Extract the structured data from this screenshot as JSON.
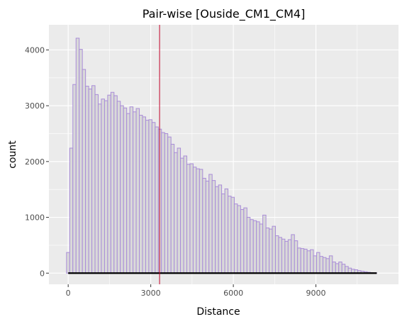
{
  "chart_data": {
    "type": "bar",
    "title": "Pair-wise [Ouside_CM1_CM4]",
    "xlabel": "Distance",
    "ylabel": "count",
    "x_ticks": [
      "0",
      "3000",
      "6000",
      "9000"
    ],
    "y_ticks": [
      "0",
      "1000",
      "2000",
      "3000",
      "4000"
    ],
    "xlim": [
      -700,
      12000
    ],
    "ylim": [
      -200,
      4450
    ],
    "bin_start": -60,
    "bin_width": 115,
    "values": [
      370,
      2240,
      3380,
      4210,
      4010,
      3650,
      3350,
      3300,
      3360,
      3200,
      3030,
      3120,
      3090,
      3190,
      3240,
      3180,
      3080,
      3000,
      2960,
      2860,
      2980,
      2890,
      2950,
      2830,
      2800,
      2740,
      2750,
      2700,
      2620,
      2580,
      2520,
      2500,
      2440,
      2310,
      2160,
      2240,
      2060,
      2100,
      1950,
      1960,
      1900,
      1870,
      1860,
      1700,
      1650,
      1770,
      1660,
      1550,
      1580,
      1420,
      1510,
      1380,
      1360,
      1240,
      1210,
      1140,
      1170,
      1000,
      960,
      940,
      920,
      880,
      1040,
      810,
      790,
      840,
      670,
      640,
      610,
      570,
      600,
      690,
      580,
      450,
      440,
      430,
      400,
      420,
      310,
      370,
      300,
      280,
      260,
      310,
      200,
      170,
      200,
      160,
      120,
      90,
      70,
      60,
      45,
      35,
      25,
      15,
      8,
      4
    ],
    "mean_line_x": 3320,
    "bar_fill": "#d9d9d9",
    "bar_outline": "#a98cd8",
    "mean_line_color": "#c0002a",
    "rug_color": "#000000",
    "panel_background": "#ebebeb",
    "grid": true
  }
}
